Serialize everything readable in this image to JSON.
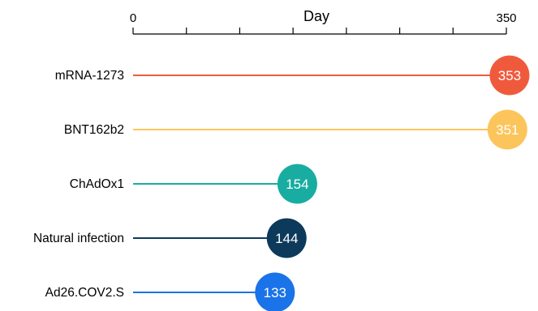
{
  "chart_data": {
    "type": "lollipop",
    "xlabel": "Day",
    "xlim": [
      0,
      350
    ],
    "x_tick_labels": [
      {
        "value": 0,
        "label": "0"
      },
      {
        "value": 350,
        "label": "350"
      }
    ],
    "x_minor_ticks": [
      0,
      50,
      100,
      150,
      200,
      250,
      300,
      350
    ],
    "categories": [
      "mRNA-1273",
      "BNT162b2",
      "ChAdOx1",
      "Natural infection",
      "Ad26.COV2.S"
    ],
    "values": [
      353,
      351,
      154,
      144,
      133
    ],
    "value_labels": [
      "353",
      "351",
      "154",
      "144",
      "133"
    ],
    "colors": [
      "#f05a3c",
      "#fcc55b",
      "#19ada1",
      "#0d3a5b",
      "#1a73e8"
    ],
    "grid": false,
    "legend": "none"
  }
}
